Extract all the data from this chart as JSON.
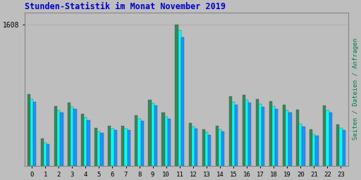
{
  "title": "Stunden-Statistik im Monat November 2019",
  "ylabel": "Seiten / Dateien / Anfragen",
  "xlabel_values": [
    0,
    1,
    2,
    3,
    4,
    5,
    6,
    7,
    8,
    9,
    10,
    11,
    12,
    13,
    14,
    15,
    16,
    17,
    18,
    19,
    20,
    21,
    22,
    23
  ],
  "series_green": [
    820,
    310,
    680,
    720,
    590,
    430,
    455,
    455,
    575,
    755,
    610,
    1608,
    490,
    420,
    460,
    790,
    810,
    760,
    735,
    695,
    640,
    420,
    690,
    470
  ],
  "series_cyan": [
    760,
    265,
    635,
    675,
    550,
    395,
    425,
    425,
    535,
    715,
    560,
    1545,
    445,
    380,
    420,
    730,
    755,
    705,
    680,
    635,
    480,
    360,
    635,
    435
  ],
  "series_blue": [
    730,
    250,
    605,
    645,
    520,
    375,
    405,
    405,
    510,
    685,
    535,
    1470,
    425,
    355,
    395,
    695,
    720,
    670,
    650,
    605,
    450,
    340,
    605,
    410
  ],
  "color_green": "#2e8b57",
  "color_cyan": "#00ffff",
  "color_blue": "#1e90ff",
  "background_plot": "#bebebe",
  "background_fig": "#bebebe",
  "grid_color": "#aaaaaa",
  "title_color": "#0000cc",
  "ylabel_color": "#008040",
  "ytick_label": "1608",
  "ylim": [
    0,
    1750
  ]
}
